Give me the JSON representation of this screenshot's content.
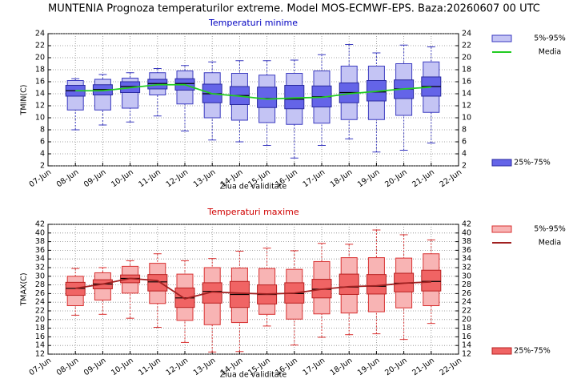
{
  "title": "MUNTENIA  Prognoza temperaturilor extreme.  Model MOS-ECMWF-EPS. Baza:20260607 00 UTC",
  "chart_data": [
    {
      "type": "box",
      "title": "Temperaturi minime",
      "title_color": "#0000c0",
      "xlabel": "Ziua de validitate",
      "ylabel": "TMIN(C)",
      "categories": [
        "07-Jun",
        "08-Jun",
        "09-Jun",
        "10-Jun",
        "11-Jun",
        "12-Jun",
        "13-Jun",
        "14-Jun",
        "15-Jun",
        "16-Jun",
        "17-Jun",
        "18-Jun",
        "19-Jun",
        "20-Jun",
        "21-Jun",
        "22-Jun"
      ],
      "ylim": [
        2,
        24
      ],
      "yticks": [
        2,
        4,
        6,
        8,
        10,
        12,
        14,
        16,
        18,
        20,
        22,
        24
      ],
      "grid": true,
      "min": [
        null,
        8,
        8.8,
        9.3,
        10.3,
        7.8,
        6.3,
        6,
        5.4,
        3.3,
        5.4,
        6.5,
        4.3,
        4.6,
        5.8,
        null
      ],
      "max": [
        null,
        16.5,
        17.2,
        17.5,
        18.2,
        18.7,
        19.3,
        19.5,
        19.5,
        19.6,
        20.5,
        22.2,
        20.8,
        22.1,
        21.8,
        null
      ],
      "median": [
        null,
        14.5,
        14.7,
        15.2,
        15.7,
        15.7,
        14,
        13.7,
        13.2,
        13.1,
        13.5,
        14.2,
        14.3,
        14.8,
        15.2,
        null
      ],
      "range_5_95": {
        "name": "5%-95%",
        "color": "#c4c4f4",
        "stroke": "#3a3ac0",
        "low": [
          null,
          11.3,
          11.3,
          11.6,
          13.8,
          12.3,
          10,
          9.6,
          9.2,
          8.9,
          9.1,
          9.7,
          9.7,
          10.4,
          10.9,
          null
        ],
        "high": [
          null,
          16.2,
          16.4,
          16.6,
          17.5,
          17.8,
          17.5,
          17.4,
          17.1,
          17.4,
          17.8,
          18.6,
          18.6,
          19,
          19.3,
          null
        ]
      },
      "range_25_75": {
        "name": "25%-75%",
        "color": "#6464e8",
        "stroke": "#2a2aa0",
        "low": [
          null,
          13.6,
          13.8,
          14.2,
          14.8,
          14.6,
          12.5,
          12.2,
          11.7,
          11.5,
          11.8,
          12.5,
          12.8,
          13.2,
          13.6,
          null
        ],
        "high": [
          null,
          15.4,
          15.5,
          16,
          16.4,
          16.5,
          15.6,
          15.2,
          15.1,
          15.4,
          15.3,
          15.8,
          16.2,
          16.3,
          16.8,
          null
        ]
      },
      "mean": {
        "name": "Media",
        "color": "#22cc22",
        "values": [
          null,
          14.5,
          14.5,
          15,
          15.5,
          15.5,
          14,
          13.6,
          13.1,
          13.3,
          13.4,
          14,
          14.4,
          14.8,
          15.1,
          null
        ]
      }
    },
    {
      "type": "box",
      "title": "Temperaturi maxime",
      "title_color": "#d00000",
      "xlabel": "Ziua de validitate",
      "ylabel": "TMAX(C)",
      "categories": [
        "07-Jun",
        "08-Jun",
        "09-Jun",
        "10-Jun",
        "11-Jun",
        "12-Jun",
        "13-Jun",
        "14-Jun",
        "15-Jun",
        "16-Jun",
        "17-Jun",
        "18-Jun",
        "19-Jun",
        "20-Jun",
        "21-Jun",
        "22-Jun"
      ],
      "ylim": [
        12,
        42
      ],
      "yticks": [
        12,
        14,
        16,
        18,
        20,
        22,
        24,
        26,
        28,
        30,
        32,
        34,
        36,
        38,
        40,
        42
      ],
      "grid": true,
      "min": [
        null,
        21,
        21.2,
        20.3,
        18.2,
        14.7,
        12.5,
        12.6,
        18.5,
        14.1,
        15.9,
        16.5,
        16.7,
        15.4,
        19.1,
        null
      ],
      "max": [
        null,
        31.8,
        32,
        33.6,
        35.2,
        33.6,
        34.1,
        35.8,
        36.5,
        35.9,
        37.6,
        37.4,
        40.7,
        39.6,
        38.4,
        null
      ],
      "median": [
        null,
        27.2,
        28.2,
        29.5,
        28.7,
        25,
        26.5,
        25.8,
        25.8,
        26,
        27,
        27.5,
        27.7,
        28.4,
        28.8,
        null
      ],
      "range_5_95": {
        "name": "5%-95%",
        "color": "#f8b4b4",
        "stroke": "#d83030",
        "low": [
          null,
          23.2,
          24.5,
          26.1,
          23.7,
          19.8,
          18.8,
          19.3,
          21.2,
          20.1,
          21.3,
          21.5,
          21.8,
          22.7,
          23.2,
          null
        ],
        "high": [
          null,
          30,
          30.8,
          32.3,
          33,
          30.5,
          32,
          31.9,
          31.8,
          31.6,
          33.4,
          34.3,
          34.3,
          34.2,
          35.2,
          null
        ]
      },
      "range_25_75": {
        "name": "25%-75%",
        "color": "#f06464",
        "stroke": "#b82020",
        "low": [
          null,
          25.6,
          27.1,
          28.5,
          26.6,
          22.8,
          23.8,
          22.8,
          23.6,
          23.8,
          25,
          25.8,
          25.9,
          26.4,
          26.6,
          null
        ],
        "high": [
          null,
          28.6,
          29.2,
          30.3,
          30.4,
          27.3,
          28.5,
          28.8,
          28,
          28.5,
          29.3,
          30.5,
          30.4,
          30.7,
          31.4,
          null
        ]
      },
      "mean": {
        "name": "Media",
        "color": "#a02020",
        "values": [
          null,
          27.2,
          28.2,
          29.5,
          29,
          24.8,
          26.4,
          26.1,
          25.9,
          26.1,
          27,
          27.6,
          27.8,
          28.4,
          28.7,
          null
        ]
      }
    }
  ]
}
